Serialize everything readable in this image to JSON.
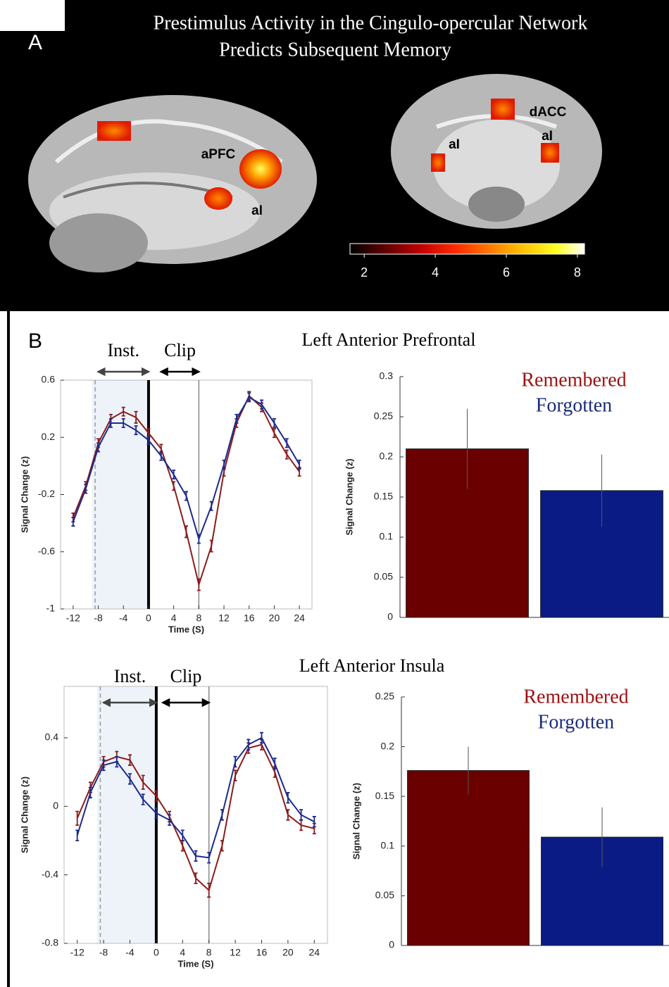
{
  "panel_a": {
    "label": "A",
    "title_lines": [
      "Prestimulus Activity in the Cingulo-opercular Network",
      "Predicts Subsequent Memory"
    ],
    "regions": [
      "aPFC",
      "aI",
      "dACC",
      "aI",
      "aI"
    ],
    "colorbar": {
      "lim": [
        1.6,
        8.2
      ],
      "ticks": [
        2,
        4,
        6,
        8
      ]
    }
  },
  "panel_b": {
    "label": "B"
  },
  "chart_data": [
    {
      "type": "line",
      "title": "Left Anterior Prefrontal",
      "xlabel": "Time (S)",
      "ylabel": "Signal Change (z)",
      "x": [
        -12,
        -10,
        -8,
        -6,
        -4,
        -2,
        0,
        2,
        4,
        6,
        8,
        10,
        12,
        14,
        16,
        18,
        20,
        22,
        24
      ],
      "xlim": [
        -14,
        26
      ],
      "xticks": [
        -12,
        -8,
        -4,
        0,
        4,
        8,
        12,
        16,
        20,
        24
      ],
      "ylim": [
        -1,
        0.6
      ],
      "yticks": [
        -1,
        -0.6,
        -0.2,
        0.2,
        0.6
      ],
      "shaded": [
        -9,
        0
      ],
      "markers": [
        -8.5,
        0,
        8
      ],
      "annotations": [
        {
          "text": "Inst.",
          "x": [
            -8,
            0
          ]
        },
        {
          "text": "Clip",
          "x": [
            2,
            8
          ]
        }
      ],
      "series": [
        {
          "color": "#8b1c1c",
          "values": [
            -0.36,
            -0.14,
            0.16,
            0.33,
            0.38,
            0.34,
            0.23,
            0.12,
            -0.14,
            -0.46,
            -0.83,
            -0.56,
            -0.04,
            0.3,
            0.49,
            0.41,
            0.23,
            0.08,
            -0.04
          ],
          "errors": [
            0.03,
            0.03,
            0.03,
            0.03,
            0.03,
            0.04,
            0.03,
            0.03,
            0.03,
            0.04,
            0.04,
            0.04,
            0.03,
            0.03,
            0.03,
            0.03,
            0.03,
            0.03,
            0.03
          ]
        },
        {
          "color": "#1c2a8c",
          "values": [
            -0.39,
            -0.16,
            0.13,
            0.3,
            0.3,
            0.25,
            0.18,
            0.07,
            -0.06,
            -0.21,
            -0.51,
            -0.28,
            0.01,
            0.33,
            0.48,
            0.43,
            0.3,
            0.16,
            0.01
          ],
          "errors": [
            0.03,
            0.03,
            0.03,
            0.03,
            0.03,
            0.03,
            0.03,
            0.03,
            0.03,
            0.03,
            0.03,
            0.03,
            0.03,
            0.03,
            0.03,
            0.03,
            0.03,
            0.03,
            0.03
          ]
        }
      ]
    },
    {
      "type": "bar",
      "ylabel": "Signal Change (z)",
      "ylim": [
        0,
        0.3
      ],
      "yticks": [
        0,
        0.05,
        0.1,
        0.15,
        0.2,
        0.25,
        0.3
      ],
      "series": [
        {
          "name": "Remembered",
          "color": "#6b0000",
          "label_color": "#9e1010",
          "values": [
            0.21
          ],
          "errors": [
            0.05
          ]
        },
        {
          "name": "Forgotten",
          "color": "#0b1b85",
          "label_color": "#1a2a7a",
          "values": [
            0.158
          ],
          "errors": [
            0.045
          ]
        }
      ]
    },
    {
      "type": "line",
      "title": "Left Anterior Insula",
      "xlabel": "Time (S)",
      "ylabel": "Signal Change (z)",
      "x": [
        -12,
        -10,
        -8,
        -6,
        -4,
        -2,
        0,
        2,
        4,
        6,
        8,
        10,
        12,
        14,
        16,
        18,
        20,
        22,
        24
      ],
      "xlim": [
        -14,
        26
      ],
      "xticks": [
        -12,
        -8,
        -4,
        0,
        4,
        8,
        12,
        16,
        20,
        24
      ],
      "ylim": [
        -0.8,
        0.7
      ],
      "yticks": [
        -0.8,
        -0.4,
        0,
        0.4
      ],
      "shaded": [
        -9,
        0
      ],
      "markers": [
        -8.5,
        0,
        8
      ],
      "annotations": [
        {
          "text": "Inst.",
          "x": [
            -8,
            0
          ]
        },
        {
          "text": "Clip",
          "x": [
            1,
            8
          ]
        }
      ],
      "series": [
        {
          "color": "#8b1c1c",
          "values": [
            -0.07,
            0.11,
            0.26,
            0.29,
            0.27,
            0.14,
            0.06,
            -0.06,
            -0.23,
            -0.42,
            -0.49,
            -0.23,
            0.18,
            0.34,
            0.36,
            0.2,
            -0.05,
            -0.11,
            -0.13
          ],
          "errors": [
            0.04,
            0.03,
            0.03,
            0.03,
            0.03,
            0.04,
            0.03,
            0.03,
            0.03,
            0.03,
            0.04,
            0.03,
            0.03,
            0.03,
            0.03,
            0.03,
            0.03,
            0.03,
            0.03
          ]
        },
        {
          "color": "#1c2a8c",
          "values": [
            -0.17,
            0.08,
            0.24,
            0.26,
            0.16,
            0.04,
            -0.04,
            -0.08,
            -0.17,
            -0.29,
            -0.3,
            -0.05,
            0.26,
            0.36,
            0.4,
            0.25,
            0.05,
            -0.05,
            -0.09
          ],
          "errors": [
            0.03,
            0.03,
            0.03,
            0.03,
            0.03,
            0.03,
            0.03,
            0.03,
            0.03,
            0.03,
            0.03,
            0.03,
            0.03,
            0.03,
            0.03,
            0.03,
            0.03,
            0.03,
            0.03
          ]
        }
      ]
    },
    {
      "type": "bar",
      "ylabel": "Signal Change (z)",
      "ylim": [
        0,
        0.25
      ],
      "yticks": [
        0,
        0.05,
        0.1,
        0.15,
        0.2,
        0.25
      ],
      "series": [
        {
          "name": "Remembered",
          "color": "#6b0000",
          "label_color": "#9e1010",
          "values": [
            0.176
          ],
          "errors": [
            0.024
          ]
        },
        {
          "name": "Forgotten",
          "color": "#0b1b85",
          "label_color": "#1a2a7a",
          "values": [
            0.109
          ],
          "errors": [
            0.03
          ]
        }
      ]
    }
  ]
}
